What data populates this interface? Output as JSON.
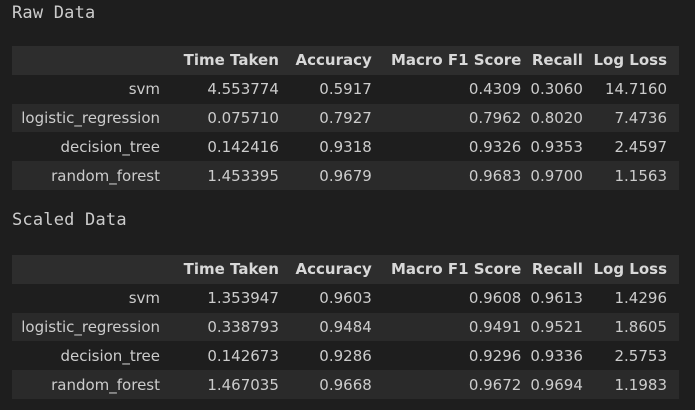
{
  "sections": [
    {
      "title": "Raw Data",
      "columns": [
        "",
        "Time Taken",
        "Accuracy",
        "Macro F1 Score",
        "Recall",
        "Log Loss"
      ],
      "rows": [
        {
          "name": "svm",
          "time": "4.553774",
          "accuracy": "0.5917",
          "f1": "0.4309",
          "recall": "0.3060",
          "logloss": "14.7160"
        },
        {
          "name": "logistic_regression",
          "time": "0.075710",
          "accuracy": "0.7927",
          "f1": "0.7962",
          "recall": "0.8020",
          "logloss": "7.4736"
        },
        {
          "name": "decision_tree",
          "time": "0.142416",
          "accuracy": "0.9318",
          "f1": "0.9326",
          "recall": "0.9353",
          "logloss": "2.4597"
        },
        {
          "name": "random_forest",
          "time": "1.453395",
          "accuracy": "0.9679",
          "f1": "0.9683",
          "recall": "0.9700",
          "logloss": "1.1563"
        }
      ]
    },
    {
      "title": "Scaled Data",
      "columns": [
        "",
        "Time Taken",
        "Accuracy",
        "Macro F1 Score",
        "Recall",
        "Log Loss"
      ],
      "rows": [
        {
          "name": "svm",
          "time": "1.353947",
          "accuracy": "0.9603",
          "f1": "0.9608",
          "recall": "0.9613",
          "logloss": "1.4296"
        },
        {
          "name": "logistic_regression",
          "time": "0.338793",
          "accuracy": "0.9484",
          "f1": "0.9491",
          "recall": "0.9521",
          "logloss": "1.8605"
        },
        {
          "name": "decision_tree",
          "time": "0.142673",
          "accuracy": "0.9286",
          "f1": "0.9296",
          "recall": "0.9336",
          "logloss": "2.5753"
        },
        {
          "name": "random_forest",
          "time": "1.467035",
          "accuracy": "0.9668",
          "f1": "0.9672",
          "recall": "0.9694",
          "logloss": "1.1983"
        }
      ]
    }
  ]
}
